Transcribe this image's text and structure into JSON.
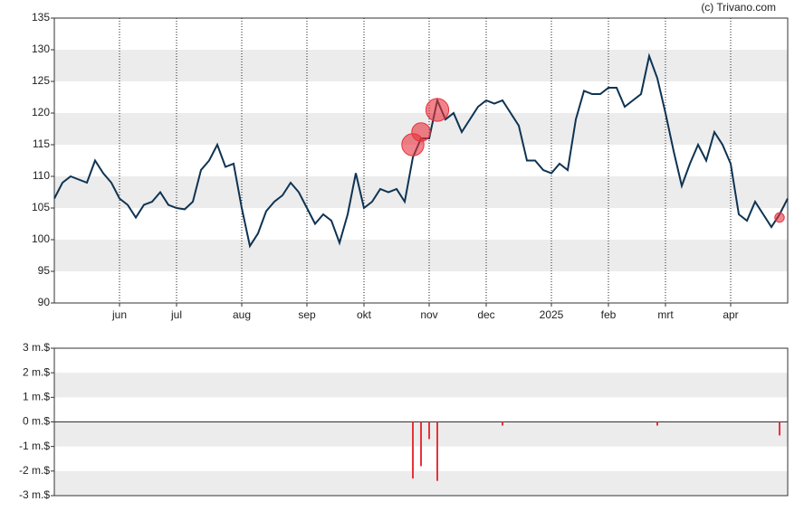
{
  "source": "(c) Trivano.com",
  "chart_data": [
    {
      "type": "line",
      "categories": [
        null,
        null,
        null,
        null,
        null,
        null,
        null,
        null,
        "jun",
        null,
        null,
        null,
        null,
        null,
        null,
        "jul",
        null,
        null,
        null,
        null,
        null,
        null,
        null,
        "aug",
        null,
        null,
        null,
        null,
        null,
        null,
        null,
        "sep",
        null,
        null,
        null,
        null,
        null,
        null,
        "okt",
        null,
        null,
        null,
        null,
        null,
        null,
        null,
        "nov",
        null,
        null,
        null,
        null,
        null,
        null,
        "dec",
        null,
        null,
        null,
        null,
        null,
        null,
        null,
        "2025",
        null,
        null,
        null,
        null,
        null,
        null,
        "feb",
        null,
        null,
        null,
        null,
        null,
        null,
        "mrt",
        null,
        null,
        null,
        null,
        null,
        null,
        null,
        "apr",
        null,
        null,
        null,
        null,
        null,
        null,
        null
      ],
      "series": [
        {
          "color": "#0e3352",
          "values": [
            106.5,
            109,
            110,
            109.5,
            109,
            112.5,
            110.5,
            109,
            106.5,
            105.5,
            103.5,
            105.5,
            106,
            107.5,
            105.5,
            105,
            104.8,
            106,
            111,
            112.5,
            115,
            111.5,
            112,
            105,
            99,
            101,
            104.5,
            106,
            107,
            109,
            107.5,
            105,
            102.5,
            104,
            103,
            99.5,
            104,
            110.5,
            105,
            106,
            108,
            107.5,
            108,
            106,
            113,
            116,
            116,
            122,
            119,
            120,
            117,
            119,
            121,
            122,
            121.5,
            122,
            120,
            118,
            112.5,
            112.5,
            111,
            110.5,
            112,
            111,
            119,
            123.5,
            123,
            123,
            124,
            124,
            121,
            122,
            123,
            129,
            125.5,
            120,
            114,
            108.5,
            112,
            115,
            112.5,
            117,
            115,
            112,
            104,
            103,
            106,
            104,
            102,
            104,
            106.5
          ]
        }
      ],
      "trades": {
        "color": "#e8323c",
        "values": [
          null,
          null,
          null,
          null,
          null,
          null,
          null,
          null,
          null,
          null,
          null,
          null,
          null,
          null,
          null,
          null,
          null,
          null,
          null,
          null,
          null,
          null,
          null,
          null,
          null,
          null,
          null,
          null,
          null,
          null,
          null,
          null,
          null,
          null,
          null,
          null,
          null,
          null,
          null,
          null,
          null,
          null,
          null,
          null,
          115,
          117,
          null,
          120.5,
          null,
          null,
          null,
          null,
          null,
          null,
          null,
          null,
          null,
          null,
          null,
          null,
          null,
          null,
          null,
          null,
          null,
          null,
          null,
          null,
          null,
          null,
          null,
          null,
          null,
          null,
          null,
          null,
          null,
          null,
          null,
          null,
          null,
          null,
          null,
          null,
          null,
          null,
          null,
          null,
          null,
          103.5,
          null
        ]
      },
      "ylim": [
        90,
        135
      ],
      "yticks": [
        90,
        95,
        100,
        105,
        110,
        115,
        120,
        125,
        130,
        135
      ],
      "bands": true,
      "grid": true
    },
    {
      "type": "bar",
      "color": "#e8323c",
      "values": [
        null,
        null,
        null,
        null,
        null,
        null,
        null,
        null,
        null,
        null,
        null,
        null,
        null,
        null,
        null,
        null,
        null,
        null,
        null,
        null,
        null,
        null,
        null,
        null,
        null,
        null,
        null,
        null,
        null,
        null,
        null,
        null,
        null,
        null,
        null,
        null,
        null,
        null,
        null,
        null,
        null,
        null,
        null,
        null,
        -2.3,
        -1.8,
        -0.7,
        -2.4,
        null,
        null,
        null,
        null,
        null,
        null,
        null,
        -0.15,
        null,
        null,
        null,
        null,
        null,
        null,
        null,
        null,
        null,
        null,
        null,
        null,
        null,
        null,
        null,
        null,
        null,
        null,
        -0.15,
        null,
        null,
        null,
        null,
        null,
        null,
        null,
        null,
        null,
        null,
        null,
        null,
        null,
        null,
        -0.55,
        null
      ],
      "ylim": [
        -3,
        3
      ],
      "yticks": [
        {
          "value": -3,
          "label": "-3 m.$"
        },
        {
          "value": -2,
          "label": "-2 m.$"
        },
        {
          "value": -1,
          "label": "-1 m.$"
        },
        {
          "value": 0,
          "label": "0 m.$"
        },
        {
          "value": 1,
          "label": "1 m.$"
        },
        {
          "value": 2,
          "label": "2 m.$"
        },
        {
          "value": 3,
          "label": "3 m.$"
        }
      ],
      "bands": true
    }
  ]
}
